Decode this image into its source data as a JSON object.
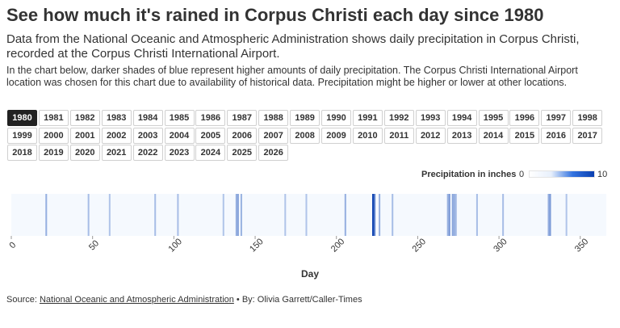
{
  "title": "See how much it's rained in Corpus Christi each day since 1980",
  "subtitle": "Data from the National Oceanic and Atmospheric Administration shows daily precipitation in Corpus Christi, recorded at the Corpus Christi International Airport.",
  "note": "In the chart below, darker shades of blue represent higher amounts of daily precipitation. The Corpus Christi International Airport location was chosen for this chart due to availability of historical data. Precipitation might be higher or lower at other locations.",
  "years": [
    "1980",
    "1981",
    "1982",
    "1983",
    "1984",
    "1985",
    "1986",
    "1987",
    "1988",
    "1989",
    "1990",
    "1991",
    "1992",
    "1993",
    "1994",
    "1995",
    "1996",
    "1997",
    "1998",
    "1999",
    "2000",
    "2001",
    "2002",
    "2003",
    "2004",
    "2005",
    "2006",
    "2007",
    "2008",
    "2009",
    "2010",
    "2011",
    "2012",
    "2013",
    "2014",
    "2015",
    "2016",
    "2017",
    "2018",
    "2019",
    "2020",
    "2021",
    "2022",
    "2023",
    "2024",
    "2025",
    "2026"
  ],
  "selected_year": "1980",
  "legend": {
    "title": "Precipitation in inches",
    "min_label": "0",
    "max_label": "10"
  },
  "colors": {
    "accent": "#0a3fb0",
    "low": "#ffffff",
    "cell_base": "#f5f9fe",
    "active_button": "#222222"
  },
  "chart_data": {
    "type": "heatmap",
    "title": "See how much it's rained in Corpus Christi each day since 1980",
    "xlabel": "Day",
    "ylabel": "",
    "xlim": [
      0,
      366
    ],
    "x_ticks": [
      0,
      50,
      100,
      150,
      200,
      250,
      300,
      350
    ],
    "color_scale": [
      0,
      10
    ],
    "values_note_days": "day-of-year index",
    "days": [
      21,
      47,
      60,
      88,
      102,
      130,
      138,
      139,
      141,
      168,
      181,
      205,
      222,
      223,
      226,
      234,
      268,
      269,
      271,
      272,
      273,
      286,
      302,
      330,
      331,
      341
    ],
    "precip": [
      0.6,
      0.3,
      0.2,
      0.3,
      0.3,
      0.2,
      0.7,
      0.9,
      0.5,
      0.2,
      0.2,
      0.6,
      9.5,
      3.2,
      0.6,
      0.3,
      0.5,
      1.6,
      0.9,
      0.7,
      0.4,
      0.3,
      0.3,
      0.6,
      1.3,
      0.2
    ]
  },
  "source": {
    "prefix": "Source: ",
    "link": "National Oceanic and Atmospheric Administration",
    "suffix": " • By: Olivia Garrett/Caller-Times"
  }
}
